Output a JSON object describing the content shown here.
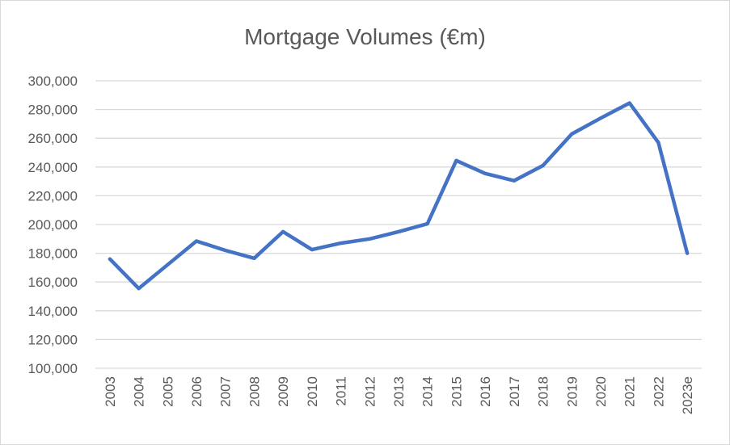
{
  "chart_data": {
    "type": "line",
    "title": "Mortgage Volumes (€m)",
    "xlabel": "",
    "ylabel": "",
    "categories": [
      "2003",
      "2004",
      "2005",
      "2006",
      "2007",
      "2008",
      "2009",
      "2010",
      "2011",
      "2012",
      "2013",
      "2014",
      "2015",
      "2016",
      "2017",
      "2018",
      "2019",
      "2020",
      "2021",
      "2022",
      "2023e"
    ],
    "series": [
      {
        "values": [
          176000,
          155500,
          172000,
          188500,
          182000,
          176500,
          195000,
          182500,
          187000,
          190000,
          195000,
          200500,
          244500,
          235500,
          230500,
          241000,
          263000,
          274000,
          284500,
          257000,
          180000
        ]
      }
    ],
    "ylim": [
      100000,
      300000
    ],
    "yticks": [
      100000,
      120000,
      140000,
      160000,
      180000,
      200000,
      220000,
      240000,
      260000,
      280000,
      300000
    ],
    "ytick_labels": [
      "100,000",
      "120,000",
      "140,000",
      "160,000",
      "180,000",
      "200,000",
      "220,000",
      "240,000",
      "260,000",
      "280,000",
      "300,000"
    ],
    "grid": true,
    "legend": "none",
    "line_color": "#4472c4",
    "grid_color": "#d9d9d9"
  }
}
